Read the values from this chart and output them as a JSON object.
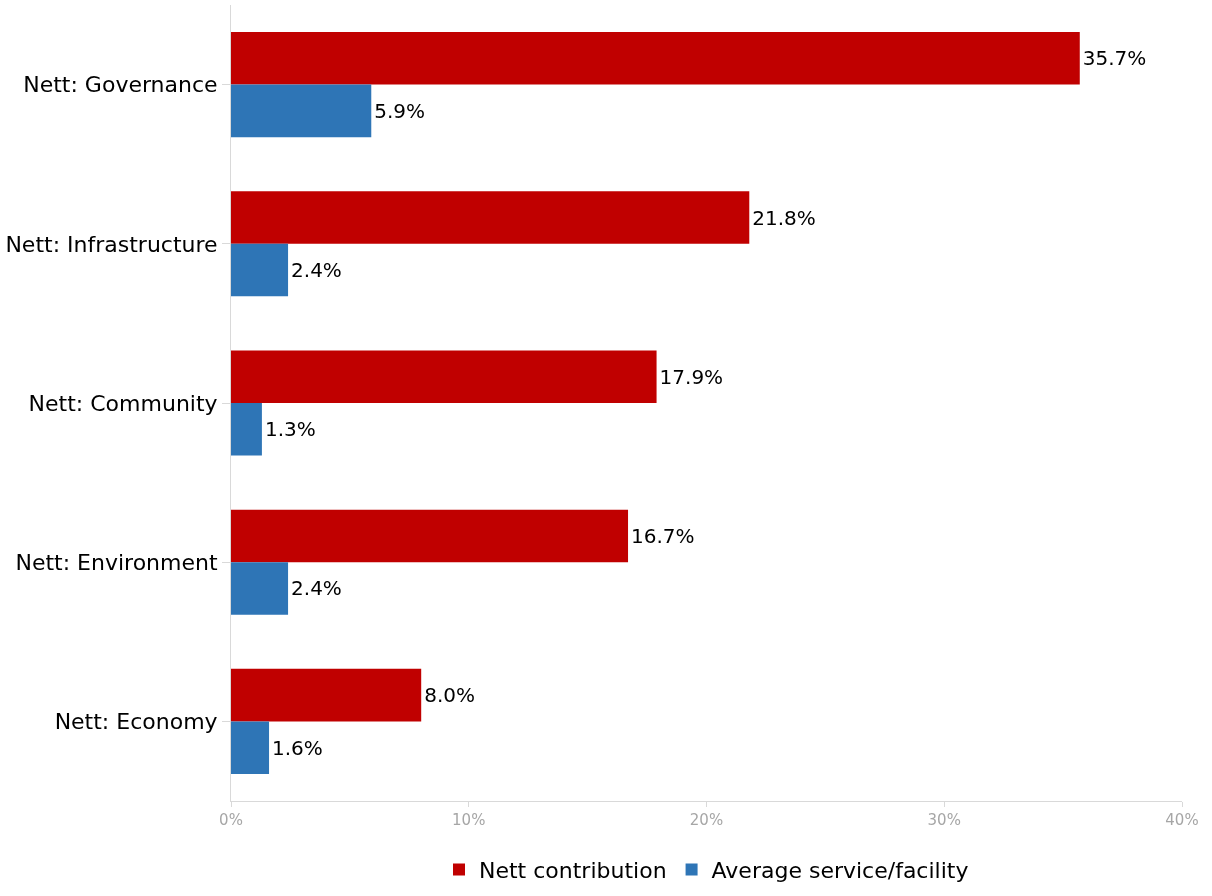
{
  "chart_data": {
    "type": "bar",
    "orientation": "horizontal",
    "categories": [
      "Nett: Governance",
      "Nett: Infrastructure",
      "Nett: Community",
      "Nett: Environment",
      "Nett: Economy"
    ],
    "series": [
      {
        "name": "Nett contribution",
        "color": "#c00000",
        "values": [
          35.7,
          21.8,
          17.9,
          16.7,
          8.0
        ],
        "value_labels": [
          "35.7%",
          "21.8%",
          "17.9%",
          "16.7%",
          "8.0%"
        ]
      },
      {
        "name": "Average service/facility",
        "color": "#2e75b6",
        "values": [
          5.9,
          2.4,
          1.3,
          2.4,
          1.6
        ],
        "value_labels": [
          "5.9%",
          "2.4%",
          "1.3%",
          "2.4%",
          "1.6%"
        ]
      }
    ],
    "xlim": [
      0,
      40
    ],
    "xticks": [
      {
        "value": 0,
        "label": "0%"
      },
      {
        "value": 10,
        "label": "10%"
      },
      {
        "value": 20,
        "label": "20%"
      },
      {
        "value": 30,
        "label": "30%"
      },
      {
        "value": 40,
        "label": "40%"
      }
    ],
    "legend": "bottom"
  }
}
